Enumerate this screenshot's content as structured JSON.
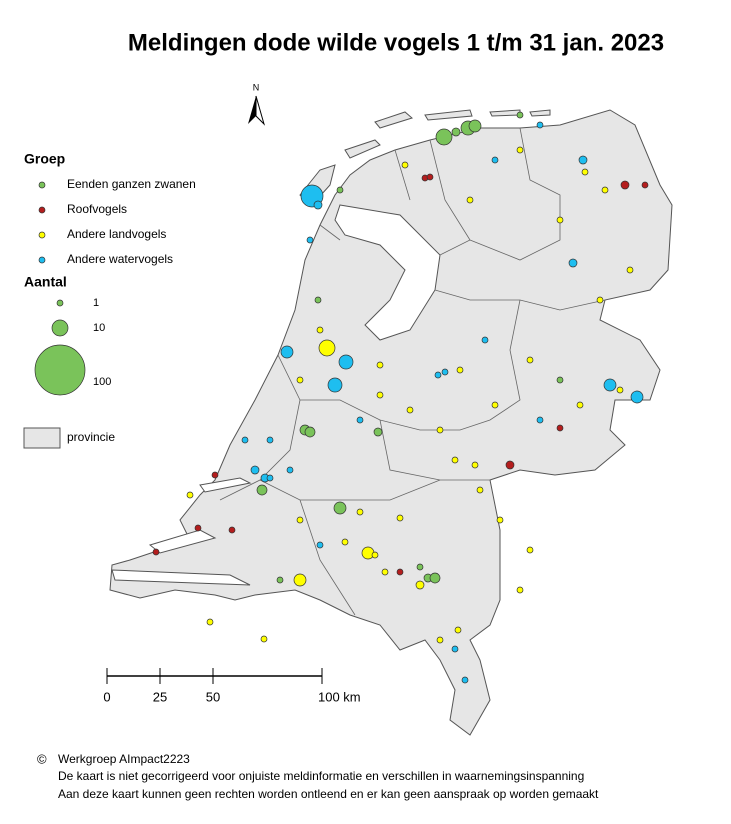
{
  "title": "Meldingen dode wilde vogels 1 t/m 31 jan. 2023",
  "north": "N",
  "legend": {
    "group_title": "Groep",
    "groups": [
      {
        "label": "Eenden ganzen zwanen",
        "color": "#7ac35a"
      },
      {
        "label": "Roofvogels",
        "color": "#b41e1e"
      },
      {
        "label": "Andere landvogels",
        "color": "#ffff00"
      },
      {
        "label": "Andere watervogels",
        "color": "#1ebef0"
      }
    ],
    "size_title": "Aantal",
    "sizes": [
      "1",
      "10",
      "100"
    ],
    "province": "provincie"
  },
  "scale_bar": {
    "labels": [
      "0",
      "25",
      "50",
      "100 km"
    ]
  },
  "footer": {
    "copyright": "Werkgroep AImpact2223",
    "lines": [
      "De kaart is niet gecorrigeerd voor onjuiste meldinformatie en verschillen in waarnemingsinspanning",
      "Aan deze kaart kunnen geen rechten worden ontleend en er kan geen aanspraak op worden gemaakt"
    ]
  }
}
